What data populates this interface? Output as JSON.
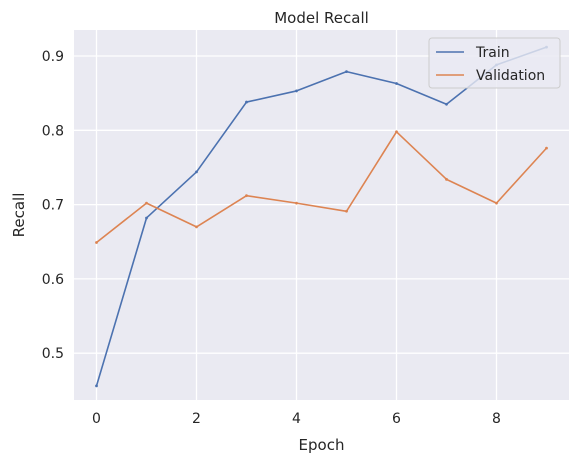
{
  "chart_data": {
    "type": "line",
    "title": "Model Recall",
    "xlabel": "Epoch",
    "ylabel": "Recall",
    "x": [
      0,
      1,
      2,
      3,
      4,
      5,
      6,
      7,
      8,
      9
    ],
    "xlim": [
      -0.45,
      9.45
    ],
    "ylim": [
      0.437,
      0.935
    ],
    "xticks": [
      0,
      2,
      4,
      6,
      8
    ],
    "yticks": [
      0.5,
      0.6,
      0.7,
      0.8,
      0.9
    ],
    "xtick_labels": [
      "0",
      "2",
      "4",
      "6",
      "8"
    ],
    "ytick_labels": [
      "0.5",
      "0.6",
      "0.7",
      "0.8",
      "0.9"
    ],
    "grid": true,
    "legend_position": "top-right",
    "background_color": "#eaeaf2",
    "grid_color": "#ffffff",
    "series": [
      {
        "name": "Train",
        "color": "#4c72b0",
        "values": [
          0.456,
          0.682,
          0.744,
          0.838,
          0.853,
          0.879,
          0.863,
          0.835,
          0.888,
          0.912
        ]
      },
      {
        "name": "Validation",
        "color": "#dd8452",
        "values": [
          0.649,
          0.702,
          0.67,
          0.712,
          0.702,
          0.691,
          0.798,
          0.734,
          0.702,
          0.776
        ]
      }
    ]
  }
}
